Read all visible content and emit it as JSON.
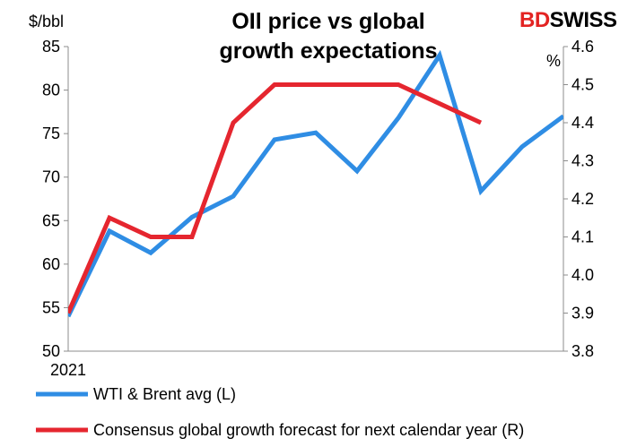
{
  "chart_data": {
    "type": "line",
    "title_lines": [
      "OIl price vs global",
      "growth expectations"
    ],
    "brand": {
      "text_bd": "BD",
      "text_swiss": "SWISS",
      "color": "#e32322"
    },
    "left_axis": {
      "unit": "$/bbl",
      "ylim": [
        50,
        85
      ],
      "ticks": [
        50,
        55,
        60,
        65,
        70,
        75,
        80,
        85
      ]
    },
    "right_axis": {
      "unit": "%",
      "ylim": [
        3.8,
        4.6
      ],
      "ticks": [
        "3.8",
        "3.9",
        "4.0",
        "4.1",
        "4.2",
        "4.3",
        "4.4",
        "4.5",
        "4.6"
      ]
    },
    "x_label": "2021",
    "x_count": 13,
    "series": [
      {
        "name": "WTI & Brent avg (L)",
        "axis": "left",
        "color": "#2f8de4",
        "x": [
          0,
          1,
          2,
          3,
          4,
          5,
          6,
          7,
          8,
          9,
          10,
          11,
          12
        ],
        "values": [
          54.0,
          63.8,
          61.3,
          65.4,
          67.8,
          74.3,
          75.1,
          70.7,
          76.8,
          84.0,
          68.4,
          73.5,
          77.0
        ]
      },
      {
        "name": "Consensus global growth forecast for next calendar year (R)",
        "axis": "right",
        "color": "#e5262f",
        "x": [
          0,
          1,
          2,
          3,
          4,
          5,
          6,
          7,
          8,
          9,
          10
        ],
        "values": [
          3.9,
          4.15,
          4.1,
          4.1,
          4.4,
          4.5,
          4.5,
          4.5,
          4.5,
          4.45,
          4.4
        ]
      }
    ],
    "legend": [
      {
        "label": "WTI & Brent avg (L)",
        "color": "#2f8de4"
      },
      {
        "label": "Consensus global growth forecast for next calendar year (R)",
        "color": "#e5262f"
      }
    ]
  }
}
